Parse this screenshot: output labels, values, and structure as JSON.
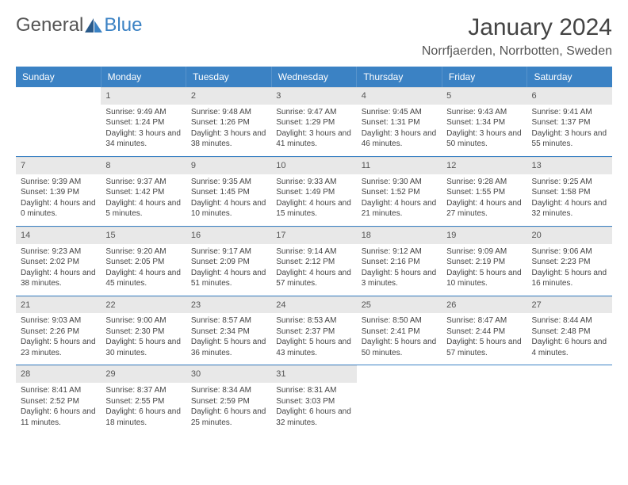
{
  "logo": {
    "text1": "General",
    "text2": "Blue"
  },
  "title": "January 2024",
  "location": "Norrfjaerden, Norrbotten, Sweden",
  "colors": {
    "header_bg": "#3b82c4",
    "daynum_bg": "#e8e8e8",
    "border": "#3b82c4",
    "text": "#444444"
  },
  "weekdays": [
    "Sunday",
    "Monday",
    "Tuesday",
    "Wednesday",
    "Thursday",
    "Friday",
    "Saturday"
  ],
  "weeks": [
    [
      {
        "num": "",
        "sunrise": "",
        "sunset": "",
        "daylight": ""
      },
      {
        "num": "1",
        "sunrise": "Sunrise: 9:49 AM",
        "sunset": "Sunset: 1:24 PM",
        "daylight": "Daylight: 3 hours and 34 minutes."
      },
      {
        "num": "2",
        "sunrise": "Sunrise: 9:48 AM",
        "sunset": "Sunset: 1:26 PM",
        "daylight": "Daylight: 3 hours and 38 minutes."
      },
      {
        "num": "3",
        "sunrise": "Sunrise: 9:47 AM",
        "sunset": "Sunset: 1:29 PM",
        "daylight": "Daylight: 3 hours and 41 minutes."
      },
      {
        "num": "4",
        "sunrise": "Sunrise: 9:45 AM",
        "sunset": "Sunset: 1:31 PM",
        "daylight": "Daylight: 3 hours and 46 minutes."
      },
      {
        "num": "5",
        "sunrise": "Sunrise: 9:43 AM",
        "sunset": "Sunset: 1:34 PM",
        "daylight": "Daylight: 3 hours and 50 minutes."
      },
      {
        "num": "6",
        "sunrise": "Sunrise: 9:41 AM",
        "sunset": "Sunset: 1:37 PM",
        "daylight": "Daylight: 3 hours and 55 minutes."
      }
    ],
    [
      {
        "num": "7",
        "sunrise": "Sunrise: 9:39 AM",
        "sunset": "Sunset: 1:39 PM",
        "daylight": "Daylight: 4 hours and 0 minutes."
      },
      {
        "num": "8",
        "sunrise": "Sunrise: 9:37 AM",
        "sunset": "Sunset: 1:42 PM",
        "daylight": "Daylight: 4 hours and 5 minutes."
      },
      {
        "num": "9",
        "sunrise": "Sunrise: 9:35 AM",
        "sunset": "Sunset: 1:45 PM",
        "daylight": "Daylight: 4 hours and 10 minutes."
      },
      {
        "num": "10",
        "sunrise": "Sunrise: 9:33 AM",
        "sunset": "Sunset: 1:49 PM",
        "daylight": "Daylight: 4 hours and 15 minutes."
      },
      {
        "num": "11",
        "sunrise": "Sunrise: 9:30 AM",
        "sunset": "Sunset: 1:52 PM",
        "daylight": "Daylight: 4 hours and 21 minutes."
      },
      {
        "num": "12",
        "sunrise": "Sunrise: 9:28 AM",
        "sunset": "Sunset: 1:55 PM",
        "daylight": "Daylight: 4 hours and 27 minutes."
      },
      {
        "num": "13",
        "sunrise": "Sunrise: 9:25 AM",
        "sunset": "Sunset: 1:58 PM",
        "daylight": "Daylight: 4 hours and 32 minutes."
      }
    ],
    [
      {
        "num": "14",
        "sunrise": "Sunrise: 9:23 AM",
        "sunset": "Sunset: 2:02 PM",
        "daylight": "Daylight: 4 hours and 38 minutes."
      },
      {
        "num": "15",
        "sunrise": "Sunrise: 9:20 AM",
        "sunset": "Sunset: 2:05 PM",
        "daylight": "Daylight: 4 hours and 45 minutes."
      },
      {
        "num": "16",
        "sunrise": "Sunrise: 9:17 AM",
        "sunset": "Sunset: 2:09 PM",
        "daylight": "Daylight: 4 hours and 51 minutes."
      },
      {
        "num": "17",
        "sunrise": "Sunrise: 9:14 AM",
        "sunset": "Sunset: 2:12 PM",
        "daylight": "Daylight: 4 hours and 57 minutes."
      },
      {
        "num": "18",
        "sunrise": "Sunrise: 9:12 AM",
        "sunset": "Sunset: 2:16 PM",
        "daylight": "Daylight: 5 hours and 3 minutes."
      },
      {
        "num": "19",
        "sunrise": "Sunrise: 9:09 AM",
        "sunset": "Sunset: 2:19 PM",
        "daylight": "Daylight: 5 hours and 10 minutes."
      },
      {
        "num": "20",
        "sunrise": "Sunrise: 9:06 AM",
        "sunset": "Sunset: 2:23 PM",
        "daylight": "Daylight: 5 hours and 16 minutes."
      }
    ],
    [
      {
        "num": "21",
        "sunrise": "Sunrise: 9:03 AM",
        "sunset": "Sunset: 2:26 PM",
        "daylight": "Daylight: 5 hours and 23 minutes."
      },
      {
        "num": "22",
        "sunrise": "Sunrise: 9:00 AM",
        "sunset": "Sunset: 2:30 PM",
        "daylight": "Daylight: 5 hours and 30 minutes."
      },
      {
        "num": "23",
        "sunrise": "Sunrise: 8:57 AM",
        "sunset": "Sunset: 2:34 PM",
        "daylight": "Daylight: 5 hours and 36 minutes."
      },
      {
        "num": "24",
        "sunrise": "Sunrise: 8:53 AM",
        "sunset": "Sunset: 2:37 PM",
        "daylight": "Daylight: 5 hours and 43 minutes."
      },
      {
        "num": "25",
        "sunrise": "Sunrise: 8:50 AM",
        "sunset": "Sunset: 2:41 PM",
        "daylight": "Daylight: 5 hours and 50 minutes."
      },
      {
        "num": "26",
        "sunrise": "Sunrise: 8:47 AM",
        "sunset": "Sunset: 2:44 PM",
        "daylight": "Daylight: 5 hours and 57 minutes."
      },
      {
        "num": "27",
        "sunrise": "Sunrise: 8:44 AM",
        "sunset": "Sunset: 2:48 PM",
        "daylight": "Daylight: 6 hours and 4 minutes."
      }
    ],
    [
      {
        "num": "28",
        "sunrise": "Sunrise: 8:41 AM",
        "sunset": "Sunset: 2:52 PM",
        "daylight": "Daylight: 6 hours and 11 minutes."
      },
      {
        "num": "29",
        "sunrise": "Sunrise: 8:37 AM",
        "sunset": "Sunset: 2:55 PM",
        "daylight": "Daylight: 6 hours and 18 minutes."
      },
      {
        "num": "30",
        "sunrise": "Sunrise: 8:34 AM",
        "sunset": "Sunset: 2:59 PM",
        "daylight": "Daylight: 6 hours and 25 minutes."
      },
      {
        "num": "31",
        "sunrise": "Sunrise: 8:31 AM",
        "sunset": "Sunset: 3:03 PM",
        "daylight": "Daylight: 6 hours and 32 minutes."
      },
      {
        "num": "",
        "sunrise": "",
        "sunset": "",
        "daylight": ""
      },
      {
        "num": "",
        "sunrise": "",
        "sunset": "",
        "daylight": ""
      },
      {
        "num": "",
        "sunrise": "",
        "sunset": "",
        "daylight": ""
      }
    ]
  ]
}
